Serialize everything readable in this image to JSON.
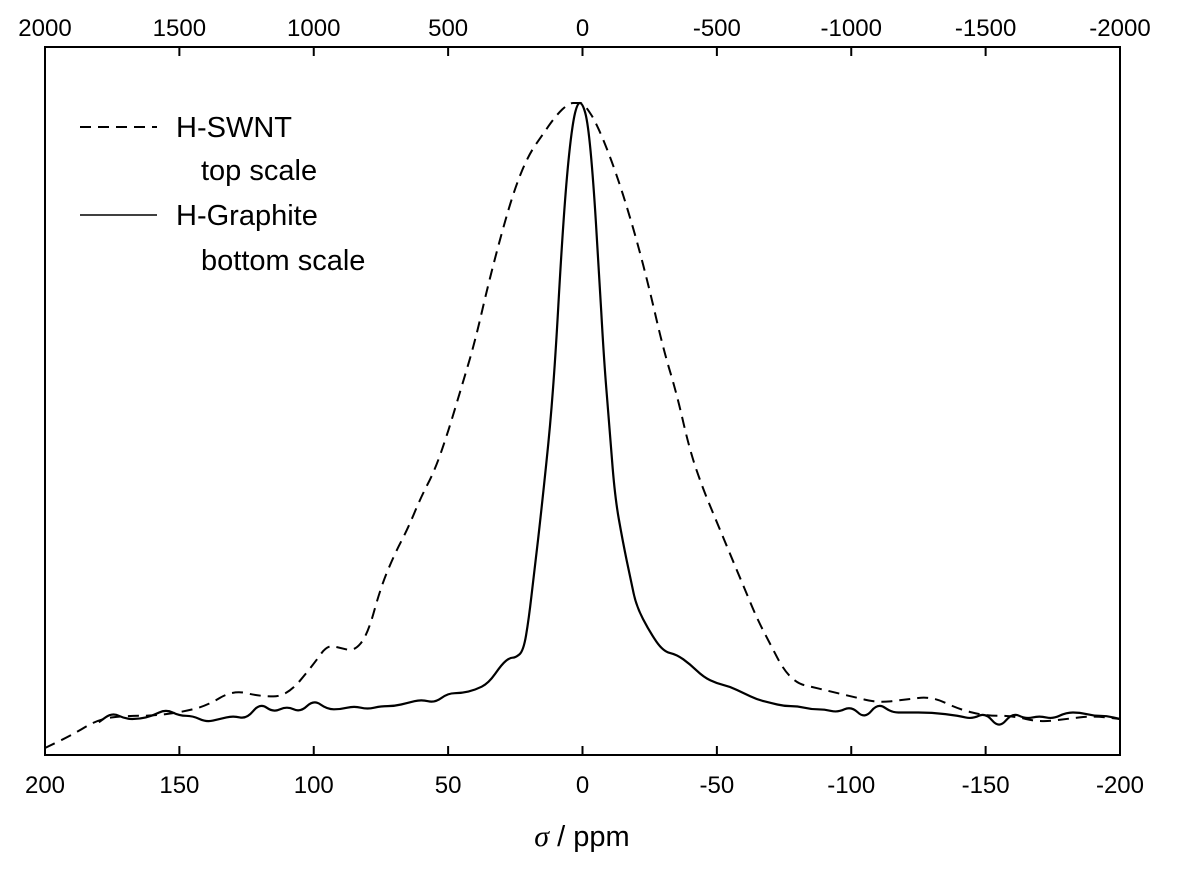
{
  "chart_data": {
    "type": "line",
    "xlabel_symbol": "σ",
    "xlabel_text": " / ppm",
    "ylabel": "",
    "grid": false,
    "legend_position": "top-left",
    "bottom_axis": {
      "range": [
        200,
        -200
      ],
      "ticks": [
        200,
        150,
        100,
        50,
        0,
        -50,
        -100,
        -150,
        -200
      ],
      "tick_labels": [
        "200",
        "150",
        "100",
        "50",
        "0",
        "-50",
        "-100",
        "-150",
        "-200"
      ]
    },
    "top_axis": {
      "range": [
        2000,
        -2000
      ],
      "ticks": [
        2000,
        1500,
        1000,
        500,
        0,
        -500,
        -1000,
        -1500,
        -2000
      ],
      "tick_labels": [
        "2000",
        "1500",
        "1000",
        "500",
        "0",
        "-500",
        "-1000",
        "-1500",
        "-2000"
      ]
    },
    "ylim": [
      0,
      1.05
    ],
    "series": [
      {
        "name": "H-SWNT",
        "legend_sub": "top scale",
        "axis": "top",
        "style": "dashed",
        "color": "#000000",
        "x": [
          2000,
          1900,
          1800,
          1700,
          1600,
          1500,
          1400,
          1300,
          1200,
          1100,
          1000,
          950,
          900,
          850,
          800,
          750,
          700,
          650,
          600,
          550,
          500,
          450,
          400,
          350,
          300,
          250,
          200,
          150,
          100,
          50,
          20,
          0,
          -20,
          -50,
          -100,
          -150,
          -200,
          -250,
          -300,
          -350,
          -400,
          -450,
          -500,
          -550,
          -600,
          -650,
          -700,
          -750,
          -800,
          -850,
          -900,
          -1000,
          -1100,
          -1200,
          -1300,
          -1400,
          -1500,
          -1600,
          -1700,
          -1800,
          -1900,
          -2000
        ],
        "y": [
          0.0,
          0.02,
          0.045,
          0.05,
          0.05,
          0.055,
          0.065,
          0.09,
          0.08,
          0.08,
          0.13,
          0.16,
          0.155,
          0.15,
          0.175,
          0.25,
          0.3,
          0.34,
          0.39,
          0.43,
          0.49,
          0.56,
          0.63,
          0.72,
          0.8,
          0.87,
          0.92,
          0.95,
          0.98,
          1.0,
          1.0,
          1.0,
          0.99,
          0.97,
          0.92,
          0.86,
          0.79,
          0.71,
          0.62,
          0.55,
          0.46,
          0.4,
          0.35,
          0.3,
          0.25,
          0.2,
          0.16,
          0.12,
          0.1,
          0.095,
          0.09,
          0.08,
          0.07,
          0.075,
          0.08,
          0.06,
          0.05,
          0.05,
          0.04,
          0.045,
          0.05,
          0.045
        ]
      },
      {
        "name": "H-Graphite",
        "legend_sub": "bottom scale",
        "axis": "bottom",
        "style": "solid",
        "color": "#000000",
        "x": [
          180,
          175,
          170,
          165,
          160,
          155,
          150,
          145,
          140,
          135,
          130,
          125,
          120,
          115,
          110,
          105,
          100,
          95,
          90,
          85,
          80,
          75,
          70,
          65,
          60,
          55,
          50,
          45,
          40,
          35,
          30,
          27,
          25,
          22,
          20,
          18,
          15,
          12,
          10,
          8,
          6,
          4,
          2,
          0,
          -2,
          -4,
          -6,
          -8,
          -10,
          -12,
          -15,
          -18,
          -20,
          -25,
          -30,
          -35,
          -40,
          -45,
          -50,
          -55,
          -60,
          -65,
          -70,
          -75,
          -80,
          -85,
          -90,
          -95,
          -100,
          -105,
          -110,
          -115,
          -120,
          -130,
          -140,
          -145,
          -150,
          -155,
          -160,
          -165,
          -170,
          -175,
          -180,
          -185,
          -190,
          -195,
          -200
        ],
        "y": [
          0.04,
          0.055,
          0.045,
          0.045,
          0.05,
          0.06,
          0.05,
          0.05,
          0.04,
          0.045,
          0.05,
          0.045,
          0.07,
          0.055,
          0.065,
          0.055,
          0.075,
          0.06,
          0.06,
          0.065,
          0.06,
          0.065,
          0.065,
          0.07,
          0.075,
          0.07,
          0.085,
          0.085,
          0.09,
          0.1,
          0.13,
          0.14,
          0.14,
          0.15,
          0.2,
          0.27,
          0.38,
          0.5,
          0.61,
          0.76,
          0.88,
          0.96,
          1.0,
          1.0,
          0.97,
          0.88,
          0.75,
          0.6,
          0.5,
          0.39,
          0.32,
          0.26,
          0.22,
          0.18,
          0.15,
          0.145,
          0.13,
          0.11,
          0.1,
          0.095,
          0.085,
          0.075,
          0.07,
          0.065,
          0.065,
          0.06,
          0.06,
          0.055,
          0.065,
          0.045,
          0.07,
          0.055,
          0.055,
          0.055,
          0.05,
          0.045,
          0.055,
          0.03,
          0.055,
          0.045,
          0.05,
          0.045,
          0.055,
          0.055,
          0.05,
          0.05,
          0.045
        ]
      }
    ]
  }
}
